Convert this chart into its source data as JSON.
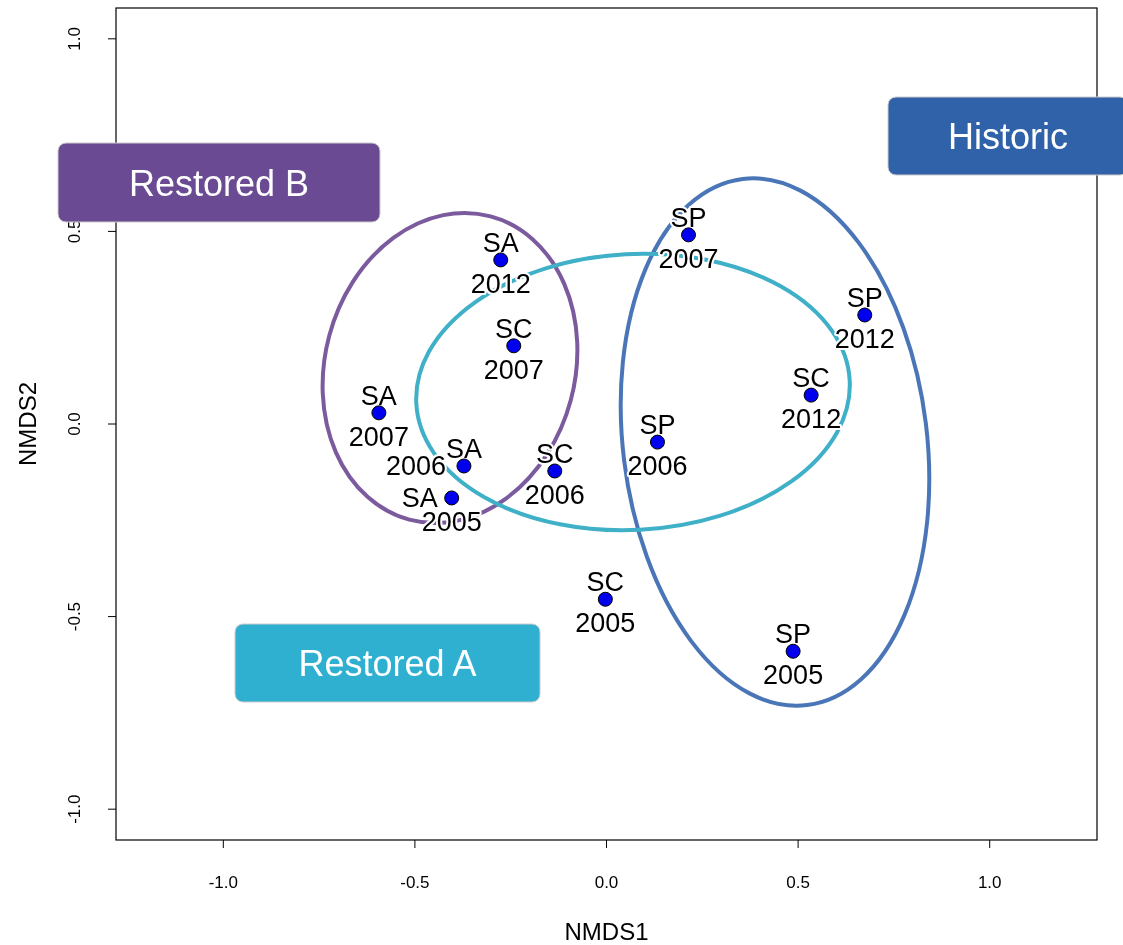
{
  "chart_data": {
    "type": "scatter",
    "xlabel": "NMDS1",
    "ylabel": "NMDS2",
    "xlim": [
      -1.28,
      1.28
    ],
    "ylim": [
      -1.08,
      1.08
    ],
    "xticks": [
      {
        "value": -1,
        "label": "-1.0"
      },
      {
        "value": -0.5,
        "label": "-0.5"
      },
      {
        "value": 0,
        "label": "0.0"
      },
      {
        "value": 0.5,
        "label": "0.5"
      },
      {
        "value": 1,
        "label": "1.0"
      }
    ],
    "yticks": [
      {
        "value": -1,
        "label": "-1.0"
      },
      {
        "value": -0.5,
        "label": "-0.5"
      },
      {
        "value": 0,
        "label": "0.0"
      },
      {
        "value": 0.5,
        "label": "0.5"
      },
      {
        "value": 1,
        "label": "1.0"
      }
    ],
    "x": [
      -0.276,
      -0.242,
      -0.594,
      -0.372,
      -0.404,
      -0.135,
      -0.003,
      0.214,
      0.674,
      0.534,
      0.133,
      0.487
    ],
    "series": [
      {
        "color": "#0000ee",
        "values": [
          0.426,
          0.203,
          0.029,
          -0.109,
          -0.192,
          -0.122,
          -0.455,
          0.491,
          0.283,
          0.075,
          -0.047,
          -0.59
        ]
      }
    ],
    "marker": "circle",
    "grid": false,
    "legend": false,
    "annotations": [
      "Restored B",
      "Historic",
      "Restored A",
      {
        "text": "SA\n2012",
        "x": -0.276,
        "y": 0.426
      },
      {
        "text": "SC\n2007",
        "x": -0.242,
        "y": 0.203
      },
      {
        "text": "SA\n2007",
        "x": -0.594,
        "y": 0.029
      },
      {
        "text": "SA\n2006",
        "x": -0.372,
        "y": -0.109
      },
      {
        "text": "SA\n2005",
        "x": -0.404,
        "y": -0.192
      },
      {
        "text": "SC\n2006",
        "x": -0.135,
        "y": -0.122
      },
      {
        "text": "SC\n2005",
        "x": -0.003,
        "y": -0.455
      },
      {
        "text": "SP\n2007",
        "x": 0.214,
        "y": 0.491
      },
      {
        "text": "SP\n2012",
        "x": 0.674,
        "y": 0.283
      },
      {
        "text": "SC\n2012",
        "x": 0.534,
        "y": 0.075
      },
      {
        "text": "SP\n2006",
        "x": 0.133,
        "y": -0.047
      },
      {
        "text": "SP\n2005",
        "x": 0.487,
        "y": -0.59
      }
    ]
  }
}
